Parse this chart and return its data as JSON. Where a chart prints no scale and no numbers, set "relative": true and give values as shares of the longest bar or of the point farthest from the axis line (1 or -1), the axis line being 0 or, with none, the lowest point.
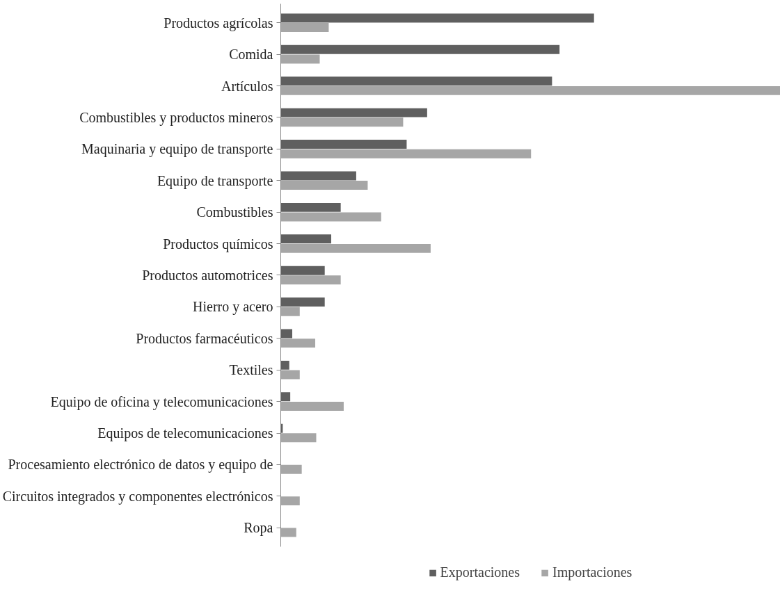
{
  "chart_data": {
    "type": "bar",
    "orientation": "horizontal",
    "relative": true,
    "legend": "bottom",
    "grid": false,
    "categories": [
      "Productos agrícolas",
      "Comida",
      "Artículos",
      "Combustibles y productos mineros",
      "Maquinaria y equipo de transporte",
      "Equipo de transporte",
      "Combustibles",
      "Productos químicos",
      "Productos automotrices",
      "Hierro y acero",
      "Productos farmacéuticos",
      "Textiles",
      "Equipo de oficina y telecomunicaciones",
      "Equipos de telecomunicaciones",
      "Procesamiento electrónico de datos y equipo de",
      "Circuitos integrados y componentes electrónicos",
      "Ropa"
    ],
    "series": [
      {
        "name": "Exportaciones",
        "color": "#5f5f5f",
        "values": [
          0.627,
          0.558,
          0.543,
          0.293,
          0.252,
          0.151,
          0.12,
          0.101,
          0.088,
          0.088,
          0.023,
          0.017,
          0.019,
          0.004,
          0,
          0,
          0
        ]
      },
      {
        "name": "Importaciones",
        "color": "#a6a6a6",
        "values": [
          0.096,
          0.078,
          1.0,
          0.245,
          0.501,
          0.174,
          0.201,
          0.3,
          0.12,
          0.038,
          0.069,
          0.038,
          0.126,
          0.071,
          0.042,
          0.038,
          0.031
        ]
      }
    ]
  }
}
